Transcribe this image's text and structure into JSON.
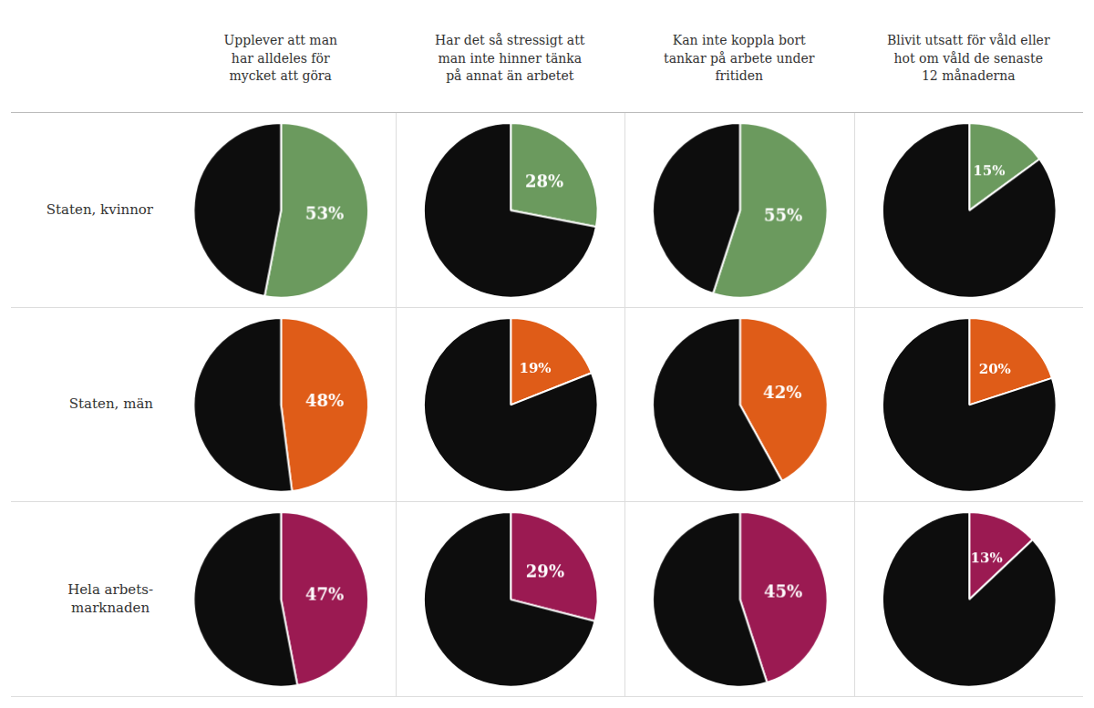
{
  "chart_data": [
    {
      "type": "pie",
      "title": "Upplever att man\nhar alldeles för\nmycket att göra",
      "ylabel": "Staten, kvinnor",
      "values": [
        53,
        47
      ],
      "colors": [
        "#6b9a5e",
        "#0d0d0d"
      ],
      "value_labels": [
        "53%",
        null
      ],
      "data_labels": true
    },
    {
      "type": "pie",
      "title": "Har det så stressigt att\nman inte hinner tänka\npå annat än arbetet",
      "values": [
        28,
        72
      ],
      "colors": [
        "#6b9a5e",
        "#0d0d0d"
      ],
      "value_labels": [
        "28%",
        null
      ],
      "data_labels": true
    },
    {
      "type": "pie",
      "title": "Kan inte koppla bort\ntankar på arbete under\nfritiden",
      "values": [
        55,
        45
      ],
      "colors": [
        "#6b9a5e",
        "#0d0d0d"
      ],
      "value_labels": [
        "55%",
        null
      ],
      "data_labels": true
    },
    {
      "type": "pie",
      "title": "Blivit utsatt för våld eller\nhot om våld de senaste\n12 månaderna",
      "values": [
        15,
        85
      ],
      "colors": [
        "#6b9a5e",
        "#0d0d0d"
      ],
      "value_labels": [
        "15%",
        null
      ],
      "data_labels": true
    },
    {
      "type": "pie",
      "ylabel": "Staten, män",
      "values": [
        48,
        52
      ],
      "colors": [
        "#df5c18",
        "#0d0d0d"
      ],
      "value_labels": [
        "48%",
        null
      ],
      "data_labels": true
    },
    {
      "type": "pie",
      "values": [
        19,
        81
      ],
      "colors": [
        "#df5c18",
        "#0d0d0d"
      ],
      "value_labels": [
        "19%",
        null
      ],
      "data_labels": true
    },
    {
      "type": "pie",
      "values": [
        42,
        58
      ],
      "colors": [
        "#df5c18",
        "#0d0d0d"
      ],
      "value_labels": [
        "42%",
        null
      ],
      "data_labels": true
    },
    {
      "type": "pie",
      "values": [
        20,
        80
      ],
      "colors": [
        "#df5c18",
        "#0d0d0d"
      ],
      "value_labels": [
        "20%",
        null
      ],
      "data_labels": true
    },
    {
      "type": "pie",
      "ylabel": "Hela arbets-\nmarknaden",
      "values": [
        47,
        53
      ],
      "colors": [
        "#9b1a52",
        "#0d0d0d"
      ],
      "value_labels": [
        "47%",
        null
      ],
      "data_labels": true
    },
    {
      "type": "pie",
      "values": [
        29,
        71
      ],
      "colors": [
        "#9b1a52",
        "#0d0d0d"
      ],
      "value_labels": [
        "29%",
        null
      ],
      "data_labels": true
    },
    {
      "type": "pie",
      "values": [
        45,
        55
      ],
      "colors": [
        "#9b1a52",
        "#0d0d0d"
      ],
      "value_labels": [
        "45%",
        null
      ],
      "data_labels": true
    },
    {
      "type": "pie",
      "values": [
        13,
        87
      ],
      "colors": [
        "#9b1a52",
        "#0d0d0d"
      ],
      "value_labels": [
        "13%",
        null
      ],
      "data_labels": true
    }
  ]
}
